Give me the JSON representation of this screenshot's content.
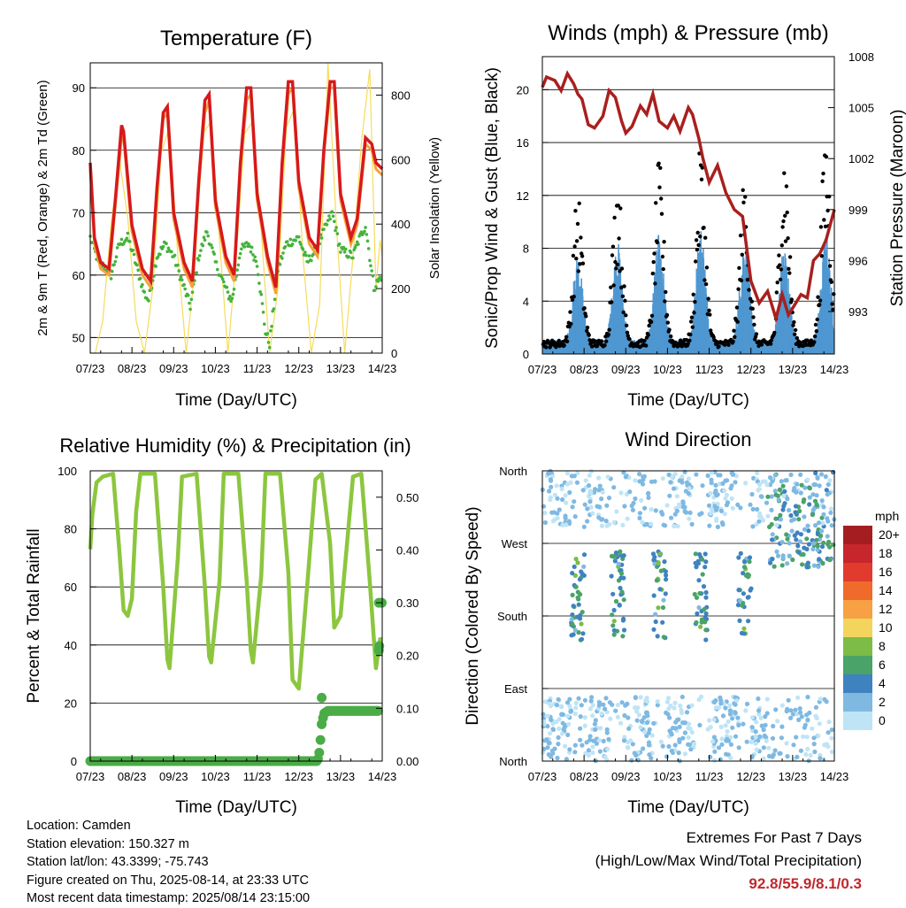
{
  "x_ticks": [
    "07/23",
    "08/23",
    "09/23",
    "10/23",
    "11/23",
    "12/23",
    "13/23",
    "14/23"
  ],
  "time_label": "Time (Day/UTC)",
  "info": {
    "location": "Location: Camden",
    "elevation": "Station elevation: 150.327 m",
    "latlon": "Station lat/lon: 43.3399; -75.743",
    "created": "Figure created on Thu, 2025-08-14, at 23:33 UTC",
    "recent": "Most recent data timestamp: 2025/08/14 23:15:00"
  },
  "extremes": {
    "title": "Extremes For Past 7 Days",
    "subtitle": "(High/Low/Max Wind/Total Precipitation)",
    "values": "92.8/55.9/8.1/0.3"
  },
  "chart_data": [
    {
      "type": "line",
      "title": "Temperature (F)",
      "xlabel": "Time (Day/UTC)",
      "ylabel": "2m & 9m T (Red, Orange) & 2m Td (Green)",
      "y2label": "Solar Insolation (Yellow)",
      "xlim": [
        0,
        7
      ],
      "ylim": [
        47.5,
        94
      ],
      "y2lim": [
        0,
        900
      ],
      "yticks": [
        50,
        60,
        70,
        80,
        90
      ],
      "y2ticks": [
        0,
        200,
        400,
        600,
        800
      ],
      "grid": true,
      "colors": {
        "t2m": "#d7191c",
        "t9m": "#f4a23a",
        "td": "#44b33c",
        "solar": "#f5dc5a"
      },
      "series": [
        {
          "x": [
            0,
            0.1,
            0.25,
            0.45,
            0.6,
            0.75,
            0.8,
            1.0,
            1.25,
            1.45,
            1.6,
            1.75,
            1.85,
            2.0,
            2.25,
            2.45,
            2.6,
            2.75,
            2.85,
            3.0,
            3.25,
            3.45,
            3.6,
            3.75,
            3.85,
            4.0,
            4.25,
            4.45,
            4.6,
            4.75,
            4.85,
            5.0,
            5.25,
            5.45,
            5.6,
            5.75,
            5.85,
            6.0,
            6.25,
            6.4,
            6.6,
            6.75,
            6.85,
            7.0
          ],
          "y": [
            78,
            66,
            62,
            61,
            72,
            84,
            83,
            68,
            61,
            59,
            74,
            86,
            87,
            70,
            62,
            59,
            75,
            88,
            89,
            72,
            63,
            60,
            78,
            90,
            90,
            73,
            63,
            58,
            78,
            91,
            91,
            75,
            66,
            64,
            80,
            91,
            91,
            73,
            66,
            69,
            82,
            81,
            78,
            77
          ]
        },
        {
          "x": [
            0,
            0.1,
            0.25,
            0.45,
            0.6,
            0.75,
            0.8,
            1.0,
            1.25,
            1.45,
            1.6,
            1.75,
            1.85,
            2.0,
            2.25,
            2.45,
            2.6,
            2.75,
            2.85,
            3.0,
            3.25,
            3.45,
            3.6,
            3.75,
            3.85,
            4.0,
            4.25,
            4.45,
            4.6,
            4.75,
            4.85,
            5.0,
            5.25,
            5.45,
            5.6,
            5.75,
            5.85,
            6.0,
            6.25,
            6.4,
            6.6,
            6.75,
            6.85,
            7.0
          ],
          "y": [
            77,
            65,
            61,
            60,
            71,
            82,
            82,
            67,
            60,
            58,
            73,
            85,
            86,
            69,
            61,
            58,
            74,
            86,
            88,
            71,
            62,
            59,
            77,
            88,
            89,
            72,
            62,
            57,
            77,
            89,
            90,
            74,
            65,
            63,
            79,
            90,
            90,
            72,
            65,
            68,
            81,
            80,
            77,
            76
          ]
        },
        {
          "x": [
            0,
            0.2,
            0.4,
            0.5,
            0.7,
            0.9,
            1.0,
            1.3,
            1.4,
            1.6,
            1.8,
            2.0,
            2.3,
            2.4,
            2.6,
            2.8,
            3.0,
            3.3,
            3.4,
            3.6,
            3.8,
            4.0,
            4.2,
            4.3,
            4.5,
            4.7,
            5.0,
            5.2,
            5.4,
            5.6,
            5.8,
            6.0,
            6.3,
            6.4,
            6.6,
            6.8,
            7.0
          ],
          "y": [
            66,
            62,
            61,
            60,
            65,
            66,
            64,
            57,
            56,
            63,
            65,
            63,
            57,
            55,
            63,
            67,
            62,
            57,
            56,
            64,
            65,
            62,
            51,
            49,
            61,
            65,
            66,
            62,
            64,
            67,
            70,
            64,
            63,
            65,
            68,
            58,
            60
          ]
        },
        {
          "x": [
            0,
            0.12,
            0.3,
            0.5,
            0.7,
            0.9,
            1.1,
            1.3,
            1.5,
            1.7,
            1.9,
            2.1,
            2.3,
            2.5,
            2.7,
            2.9,
            3.1,
            3.3,
            3.5,
            3.7,
            3.9,
            4.1,
            4.3,
            4.5,
            4.7,
            4.9,
            5.1,
            5.3,
            5.5,
            5.7,
            5.9,
            6.1,
            6.3,
            6.5,
            6.7,
            6.85,
            6.95,
            7.0
          ],
          "y": [
            0,
            0,
            100,
            400,
            600,
            420,
            100,
            0,
            200,
            620,
            700,
            300,
            0,
            250,
            680,
            720,
            350,
            0,
            300,
            680,
            720,
            380,
            0,
            200,
            700,
            760,
            300,
            0,
            150,
            900,
            400,
            0,
            300,
            650,
            880,
            200,
            350,
            300
          ]
        }
      ]
    },
    {
      "type": "scatter",
      "title": "Winds (mph) & Pressure (mb)",
      "xlabel": "Time (Day/UTC)",
      "ylabel": "Sonic/Prop Wind & Gust (Blue, Black)",
      "y2label": "Station Pressure (Maroon)",
      "xlim": [
        0,
        7
      ],
      "ylim": [
        0,
        22.5
      ],
      "y2lim": [
        990.5,
        1008
      ],
      "yticks": [
        0,
        4,
        8,
        12,
        16,
        20
      ],
      "y2ticks": [
        993,
        996,
        999,
        1002,
        1005,
        1008
      ],
      "grid": true,
      "colors": {
        "wind": "#4f97d1",
        "gust": "#000000",
        "pressure": "#a8201e"
      },
      "pressure": {
        "x": [
          0,
          0.1,
          0.3,
          0.45,
          0.6,
          0.75,
          0.85,
          0.95,
          1.1,
          1.25,
          1.45,
          1.6,
          1.75,
          1.9,
          2.0,
          2.15,
          2.35,
          2.5,
          2.65,
          2.8,
          3.0,
          3.15,
          3.3,
          3.5,
          3.6,
          3.75,
          3.85,
          4.0,
          4.2,
          4.4,
          4.6,
          4.8,
          5.0,
          5.2,
          5.4,
          5.6,
          5.75,
          5.9,
          6.0,
          6.2,
          6.35,
          6.5,
          6.65,
          6.8,
          7.0
        ],
        "y": [
          1006.2,
          1006.8,
          1006.6,
          1006.0,
          1007.0,
          1006.4,
          1005.8,
          1005.5,
          1004.0,
          1003.8,
          1004.5,
          1006.0,
          1005.6,
          1004.2,
          1003.5,
          1003.9,
          1005.1,
          1004.6,
          1005.8,
          1004.2,
          1003.8,
          1004.5,
          1003.6,
          1005.0,
          1004.6,
          1003.2,
          1002.0,
          1000.6,
          1001.6,
          1000.0,
          999.0,
          998.6,
          994.8,
          993.5,
          994.2,
          992.6,
          994.0,
          992.8,
          993.2,
          994.0,
          993.8,
          996.0,
          996.4,
          997.2,
          999.0
        ]
      },
      "wind_days": [
        {
          "center": 0.85,
          "peak": 6.5,
          "gust_peak": 10.8
        },
        {
          "center": 1.8,
          "peak": 7.2,
          "gust_peak": 12.3
        },
        {
          "center": 2.8,
          "peak": 8.0,
          "gust_peak": 13.0
        },
        {
          "center": 3.8,
          "peak": 8.3,
          "gust_peak": 14.2
        },
        {
          "center": 4.85,
          "peak": 7.5,
          "gust_peak": 12.0
        },
        {
          "center": 5.8,
          "peak": 7.0,
          "gust_peak": 14.5
        },
        {
          "center": 6.8,
          "peak": 7.8,
          "gust_peak": 15.5
        }
      ]
    },
    {
      "type": "line",
      "title": "Relative Humidity (%) & Precipitation (in)",
      "xlabel": "Time (Day/UTC)",
      "ylabel": "Percent & Total Rainfall",
      "xlim": [
        0,
        7
      ],
      "ylim": [
        0,
        100
      ],
      "y2lim": [
        0,
        0.55
      ],
      "yticks": [
        0,
        20,
        40,
        60,
        80,
        100
      ],
      "y2ticks": [
        "0.00",
        "0.10",
        "0.20",
        "0.30",
        "0.40",
        "0.50"
      ],
      "grid": true,
      "colors": {
        "rh": "#8cc63f",
        "precip": "#4aac46"
      },
      "series": [
        {
          "x": [
            0,
            0.05,
            0.15,
            0.3,
            0.55,
            0.7,
            0.8,
            0.9,
            1.0,
            1.1,
            1.2,
            1.55,
            1.75,
            1.85,
            1.9,
            2.1,
            2.2,
            2.55,
            2.75,
            2.85,
            2.9,
            3.1,
            3.2,
            3.55,
            3.75,
            3.85,
            3.9,
            4.1,
            4.2,
            4.55,
            4.75,
            4.85,
            5.0,
            5.2,
            5.4,
            5.55,
            5.75,
            5.85,
            6.0,
            6.3,
            6.5,
            6.55,
            6.7,
            6.85,
            6.95,
            7.0
          ],
          "y": [
            73,
            85,
            96,
            98,
            99,
            72,
            52,
            50,
            56,
            86,
            99,
            99,
            60,
            35,
            32,
            70,
            98,
            99,
            60,
            36,
            34,
            62,
            99,
            99,
            62,
            38,
            34,
            64,
            99,
            99,
            65,
            28,
            25,
            60,
            97,
            99,
            75,
            46,
            50,
            98,
            99,
            90,
            62,
            32,
            42,
            42
          ]
        },
        {
          "x": [
            0,
            5.45,
            5.5,
            5.55,
            5.6,
            5.7,
            6.9,
            6.95,
            7.0
          ],
          "y": [
            0,
            0,
            0.02,
            0.07,
            0.09,
            0.095,
            0.095,
            0.3,
            0.3
          ]
        }
      ]
    },
    {
      "type": "scatter",
      "title": "Wind Direction",
      "xlabel": "Time (Day/UTC)",
      "ylabel": "Direction (Colored By Speed)",
      "xlim": [
        0,
        7
      ],
      "ylim": [
        0,
        360
      ],
      "yticks": [
        "North",
        "East",
        "South",
        "West",
        "North"
      ],
      "grid": true,
      "colorbar": {
        "unit": "mph",
        "labels": [
          "20+",
          "18",
          "16",
          "14",
          "12",
          "10",
          "8",
          "6",
          "4",
          "2",
          "0"
        ],
        "colors": [
          "#a51d21",
          "#c7272c",
          "#e13b2e",
          "#f06a2b",
          "#f7a044",
          "#f3d55e",
          "#7cbc47",
          "#4aa368",
          "#3f82c0",
          "#7fb9e2",
          "#bfe4f6"
        ]
      }
    }
  ]
}
